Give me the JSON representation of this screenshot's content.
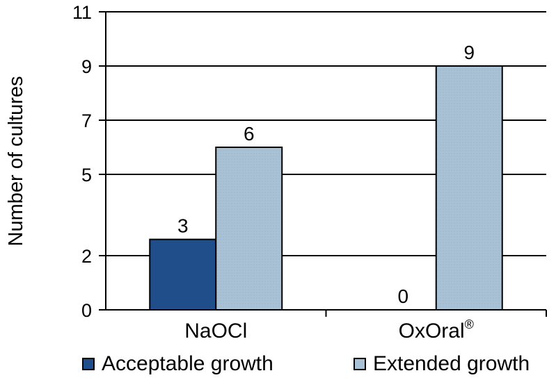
{
  "chart_data": {
    "type": "bar",
    "title": "",
    "xlabel": "",
    "ylabel": "Number of cultures",
    "categories": [
      "NaOCl",
      "OxOral"
    ],
    "category_superscripts": [
      "",
      "®"
    ],
    "ylim": [
      0,
      11
    ],
    "yticks": [
      0,
      2,
      5,
      7,
      9,
      11
    ],
    "series": [
      {
        "name": "Acceptable growth",
        "color": "#1f4e8a",
        "values": [
          2.6,
          0
        ],
        "data_labels": [
          "3",
          "0"
        ]
      },
      {
        "name": "Extended growth",
        "color": "#a8c1d4",
        "values": [
          6,
          9
        ],
        "data_labels": [
          "6",
          "9"
        ]
      }
    ],
    "grid": true,
    "legend_position": "bottom"
  }
}
